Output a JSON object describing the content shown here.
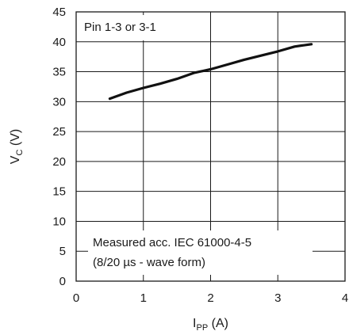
{
  "chart_data": {
    "type": "line",
    "xlabel": {
      "main": "I",
      "sub": "PP",
      "unit": " (A)"
    },
    "ylabel": {
      "main": "V",
      "sub": "C",
      "unit": " (V)"
    },
    "xlim": [
      0,
      4
    ],
    "ylim": [
      0,
      45
    ],
    "xticks": [
      "0",
      "1",
      "2",
      "3",
      "4"
    ],
    "yticks": [
      "0",
      "5",
      "10",
      "15",
      "20",
      "25",
      "30",
      "35",
      "40",
      "45"
    ],
    "grid": true,
    "annotations": {
      "pin_label": "Pin 1-3 or 3-1",
      "measure_line1": "Measured acc. IEC 61000-4-5",
      "measure_line2": "(8/20 µs - wave form)"
    },
    "series": [
      {
        "x": [
          0.5,
          0.75,
          1.0,
          1.25,
          1.5,
          1.75,
          2.0,
          2.25,
          2.5,
          2.75,
          3.0,
          3.25,
          3.5
        ],
        "y": [
          30.5,
          31.5,
          32.3,
          33.0,
          33.8,
          34.8,
          35.4,
          36.2,
          37.0,
          37.7,
          38.4,
          39.2,
          39.6
        ]
      }
    ],
    "line_color": "#111111",
    "grid_color": "#1a1a1a"
  }
}
